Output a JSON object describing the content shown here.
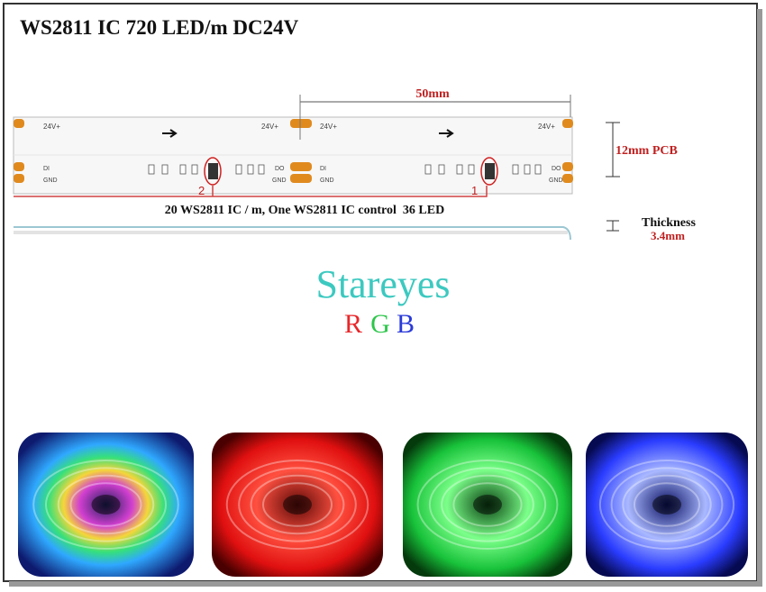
{
  "header": {
    "title": "WS2811 IC 720 LED/m DC24V"
  },
  "diagram": {
    "segment_length": "50mm",
    "pcb_width": "12mm PCB",
    "thickness_label": "Thickness",
    "thickness_value": "3.4mm",
    "caption": "20 WS2811 IC / m, One WS2811 IC control  36 LED",
    "pads": {
      "power": "24V+",
      "data_in": "DI",
      "ground": "GND",
      "data_out": "DO"
    },
    "ic_numbers": [
      "2",
      "1"
    ]
  },
  "brand": {
    "name": "Stareyes",
    "letters": [
      "R",
      "G",
      "B"
    ]
  }
}
